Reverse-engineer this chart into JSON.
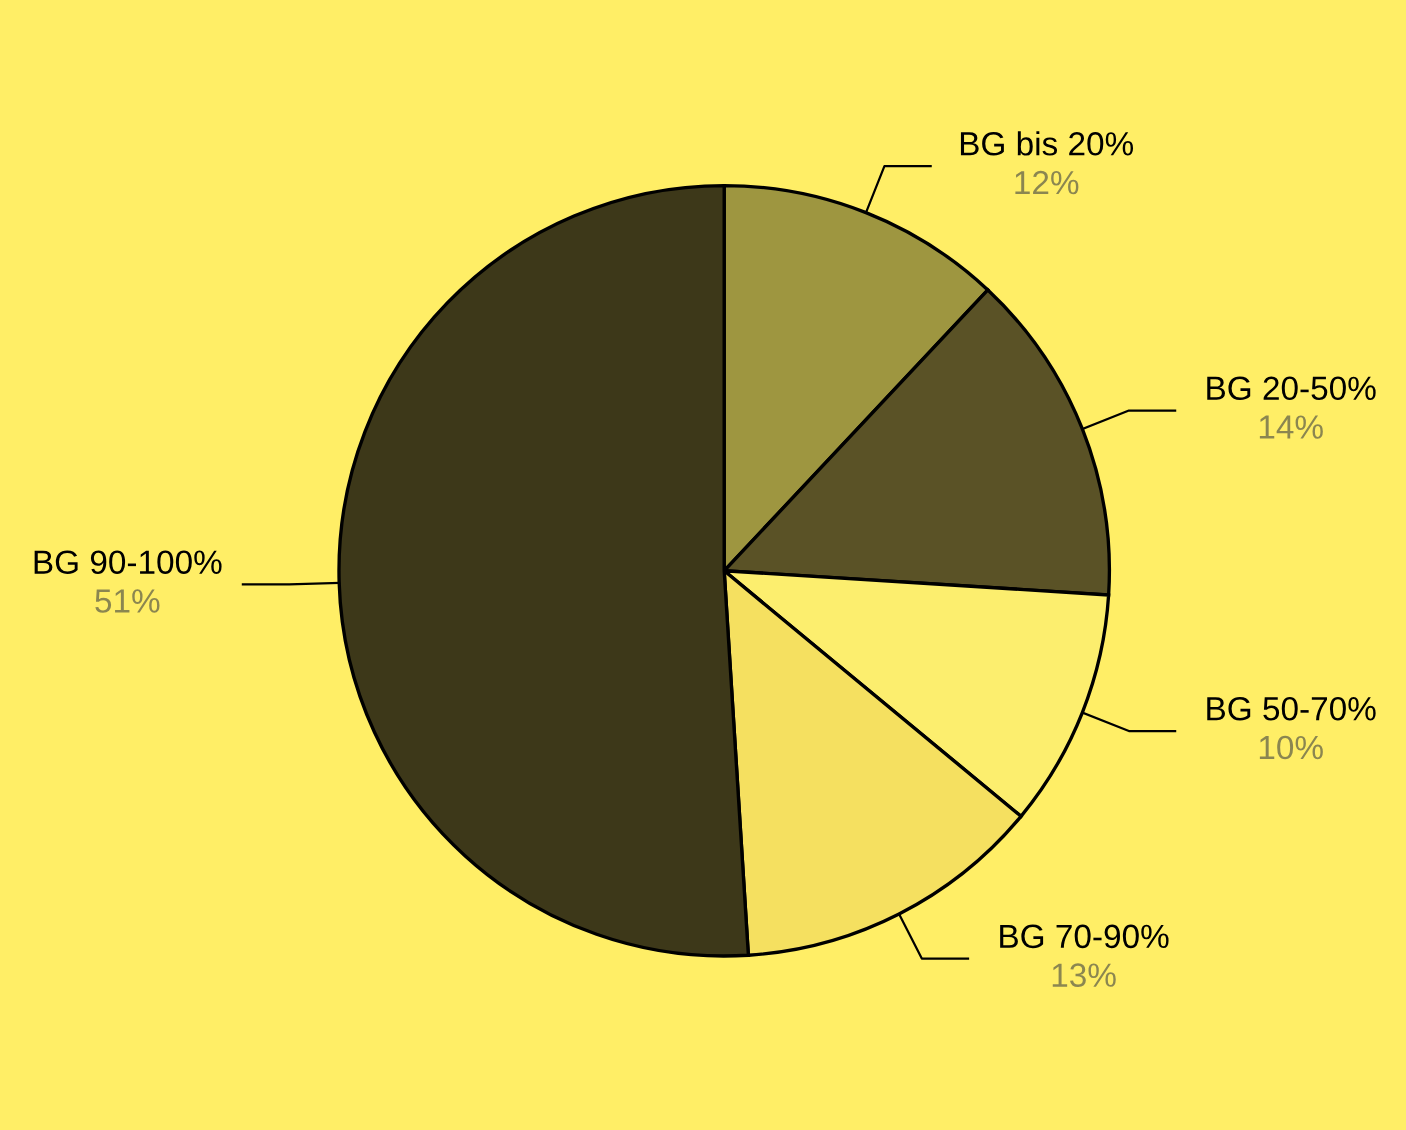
{
  "chart_data": {
    "type": "pie",
    "categories": [
      "BG bis 20%",
      "BG 20-50%",
      "BG 50-70%",
      "BG 70-90%",
      "BG 90-100%"
    ],
    "values": [
      12,
      14,
      10,
      13,
      51
    ],
    "colors": [
      "#9e9640",
      "#5a5226",
      "#fcee6e",
      "#f5e060",
      "#3d3819"
    ],
    "value_labels": [
      "12%",
      "14%",
      "10%",
      "13%",
      "51%"
    ],
    "legend": false
  }
}
